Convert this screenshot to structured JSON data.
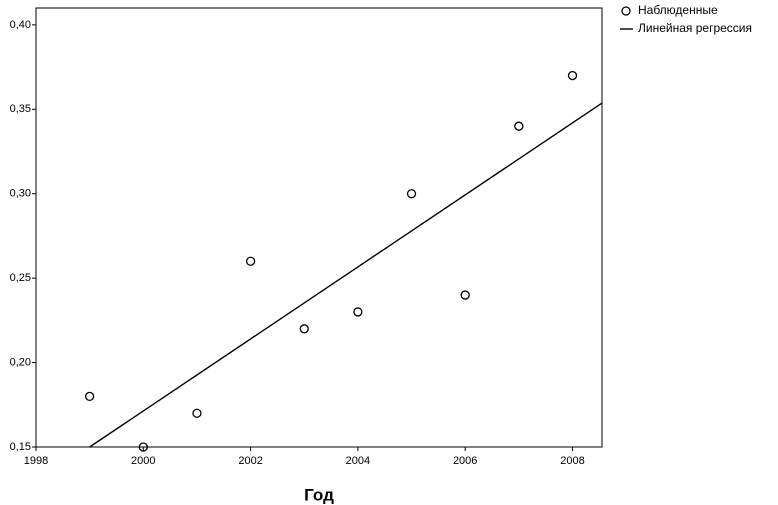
{
  "chart_data": {
    "type": "scatter",
    "x_label": "Год",
    "xlim": [
      1998,
      2008.55
    ],
    "xticks": [
      1998,
      2000,
      2002,
      2004,
      2006,
      2008
    ],
    "ylim": [
      0.15,
      0.41
    ],
    "yticks": [
      {
        "value": 0.15,
        "label": "0,15"
      },
      {
        "value": 0.2,
        "label": "0,20"
      },
      {
        "value": 0.25,
        "label": "0,25"
      },
      {
        "value": 0.3,
        "label": "0,30"
      },
      {
        "value": 0.35,
        "label": "0,35"
      },
      {
        "value": 0.4,
        "label": "0,40"
      }
    ],
    "legend": "outside-top-right",
    "series": [
      {
        "name": "Наблюденные",
        "type": "scatter",
        "color": "#000000",
        "x": [
          1999,
          2000,
          2001,
          2002,
          2003,
          2004,
          2005,
          2006,
          2007,
          2008
        ],
        "values": [
          0.18,
          0.15,
          0.17,
          0.26,
          0.22,
          0.23,
          0.3,
          0.24,
          0.34,
          0.37
        ]
      },
      {
        "name": "Линейная регрессия",
        "type": "line",
        "color": "#000000",
        "x": [
          1999,
          2008.55
        ],
        "values": [
          0.15,
          0.3537
        ]
      }
    ]
  }
}
